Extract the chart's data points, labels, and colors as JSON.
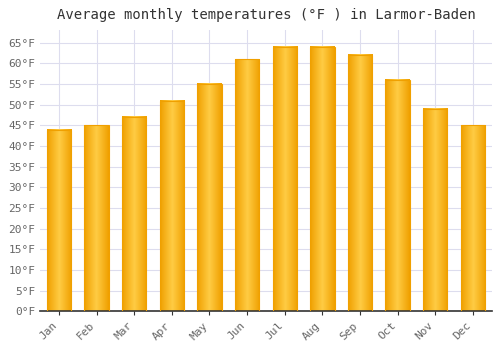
{
  "title": "Average monthly temperatures (°F ) in Larmor-Baden",
  "months": [
    "Jan",
    "Feb",
    "Mar",
    "Apr",
    "May",
    "Jun",
    "Jul",
    "Aug",
    "Sep",
    "Oct",
    "Nov",
    "Dec"
  ],
  "values": [
    44,
    45,
    47,
    51,
    55,
    61,
    64,
    64,
    62,
    56,
    49,
    45
  ],
  "bar_color_center": "#FFCC44",
  "bar_color_edge": "#F0A000",
  "background_color": "#FFFFFF",
  "grid_color": "#DDDDEE",
  "ytick_start": 0,
  "ytick_end": 65,
  "ytick_step": 5,
  "title_fontsize": 10,
  "tick_fontsize": 8,
  "ylabel_suffix": "°F",
  "ylim_max": 68
}
